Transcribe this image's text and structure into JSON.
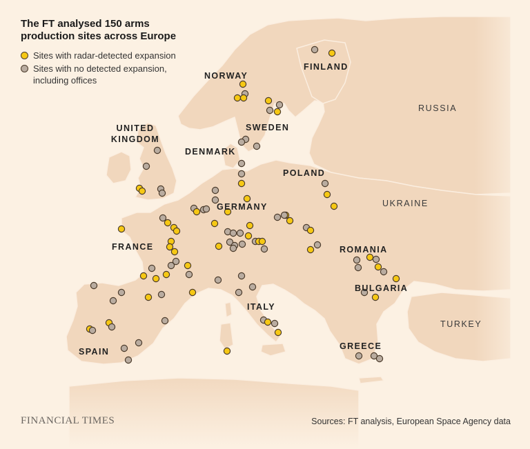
{
  "title": "The FT analysed 150 arms production sites across Europe",
  "legend": {
    "items": [
      {
        "label": "Sites with radar-detected expansion",
        "color": "#f6c814"
      },
      {
        "label": "Sites with no detected expansion, including offices",
        "color": "#b9aca0"
      }
    ]
  },
  "countries": {
    "norway": "NORWAY",
    "finland": "FINLAND",
    "russia": "RUSSIA",
    "sweden": "SWEDEN",
    "united_kingdom": "UNITED KINGDOM",
    "denmark": "DENMARK",
    "poland": "POLAND",
    "germany": "GERMANY",
    "ukraine": "UKRAINE",
    "france": "FRANCE",
    "romania": "ROMANIA",
    "bulgaria": "BULGARIA",
    "italy": "ITALY",
    "turkey": "TURKEY",
    "spain": "SPAIN",
    "greece": "GREECE"
  },
  "colors": {
    "background": "#fcf1e3",
    "land": "#f1d7bd",
    "border": "#fcf1e3",
    "expansion": "#f6c814",
    "no_expansion": "#b9aca0",
    "dot_stroke": "#4a3a2a"
  },
  "footer": {
    "brand": "FINANCIAL TIMES",
    "source": "Sources: FT analysis, European Space Agency data"
  }
}
